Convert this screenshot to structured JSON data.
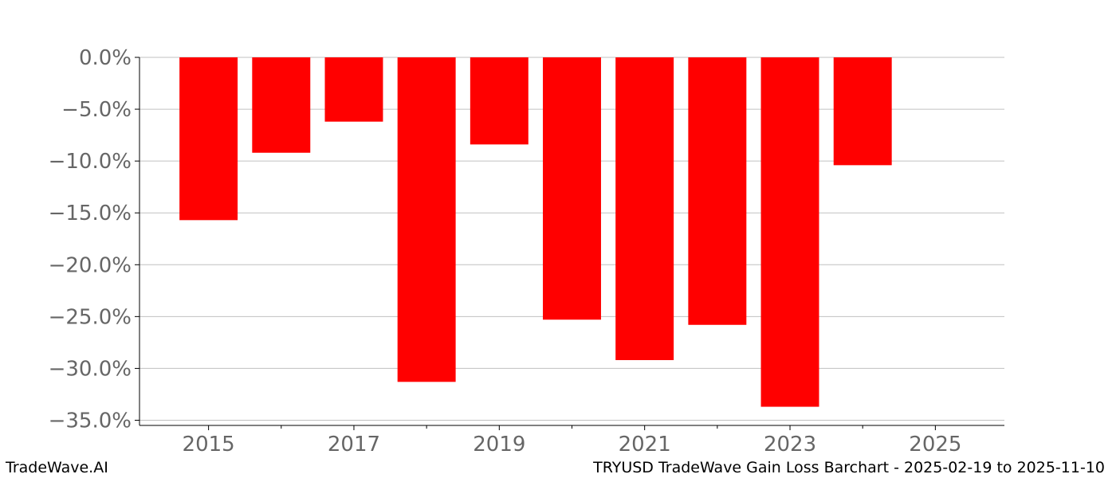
{
  "chart_data": {
    "type": "bar",
    "x": [
      2015,
      2016,
      2017,
      2018,
      2019,
      2020,
      2021,
      2022,
      2023,
      2024
    ],
    "values": [
      -15.7,
      -9.2,
      -6.2,
      -31.3,
      -8.4,
      -25.3,
      -29.2,
      -25.8,
      -33.7,
      -10.4
    ],
    "xlim": [
      2014.05,
      2025.95
    ],
    "ylim": [
      -35.5,
      0
    ],
    "x_ticks": [
      2015,
      2017,
      2019,
      2021,
      2023,
      2025
    ],
    "x_tick_labels": [
      "2015",
      "2017",
      "2019",
      "2021",
      "2023",
      "2025"
    ],
    "x_minor_ticks": [
      2016,
      2018,
      2020,
      2022,
      2024
    ],
    "y_ticks": [
      0,
      -5,
      -10,
      -15,
      -20,
      -25,
      -30,
      -35
    ],
    "y_tick_labels": [
      "0.0%",
      "−5.0%",
      "−10.0%",
      "−15.0%",
      "−20.0%",
      "−25.0%",
      "−30.0%",
      "−35.0%"
    ],
    "bar_width": 0.8,
    "bar_color": "#ff0000",
    "grid": "horizontal",
    "grid_color": "#c0c0c0",
    "legend": "none"
  },
  "footer": {
    "brand": "TradeWave.AI",
    "caption": "TRYUSD TradeWave Gain Loss Barchart - 2025-02-19 to 2025-11-10"
  }
}
